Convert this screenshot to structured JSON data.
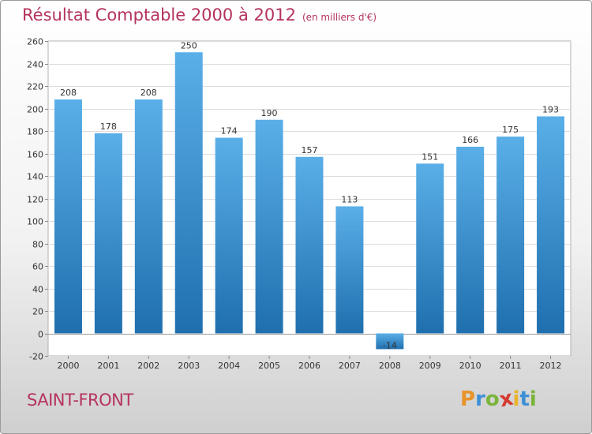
{
  "header": {
    "title": "Résultat Comptable 2000 à 2012",
    "subtitle": "(en milliers d'€)"
  },
  "footer": {
    "city": "SAINT-FRONT",
    "logo_letters": [
      "P",
      "r",
      "o",
      "x",
      "i",
      "t",
      "i"
    ],
    "logo_colors": [
      "#e8942a",
      "#3d8fd6",
      "#7bb43b",
      "#d6392f",
      "#e8b22a",
      "#3d8fd6",
      "#7bb43b"
    ]
  },
  "colors": {
    "bar_top": "#5aafe8",
    "bar_bottom": "#1f6fae",
    "text": "#333333",
    "accent": "#b5335c"
  },
  "chart_data": {
    "type": "bar",
    "title": "Résultat Comptable 2000 à 2012",
    "xlabel": "",
    "ylabel": "",
    "categories": [
      "2000",
      "2001",
      "2002",
      "2003",
      "2004",
      "2005",
      "2006",
      "2007",
      "2008",
      "2009",
      "2010",
      "2011",
      "2012"
    ],
    "values": [
      208,
      178,
      208,
      250,
      174,
      190,
      157,
      113,
      -14,
      151,
      166,
      175,
      193
    ],
    "labels": [
      "208",
      "178",
      "208",
      "250",
      "174",
      "190",
      "157",
      "113",
      "-14",
      "151",
      "166",
      "175",
      "193"
    ],
    "ylim": [
      -20,
      260
    ],
    "yticks": [
      -20,
      0,
      20,
      40,
      60,
      80,
      100,
      120,
      140,
      160,
      180,
      200,
      220,
      240,
      260
    ],
    "grid": true
  }
}
